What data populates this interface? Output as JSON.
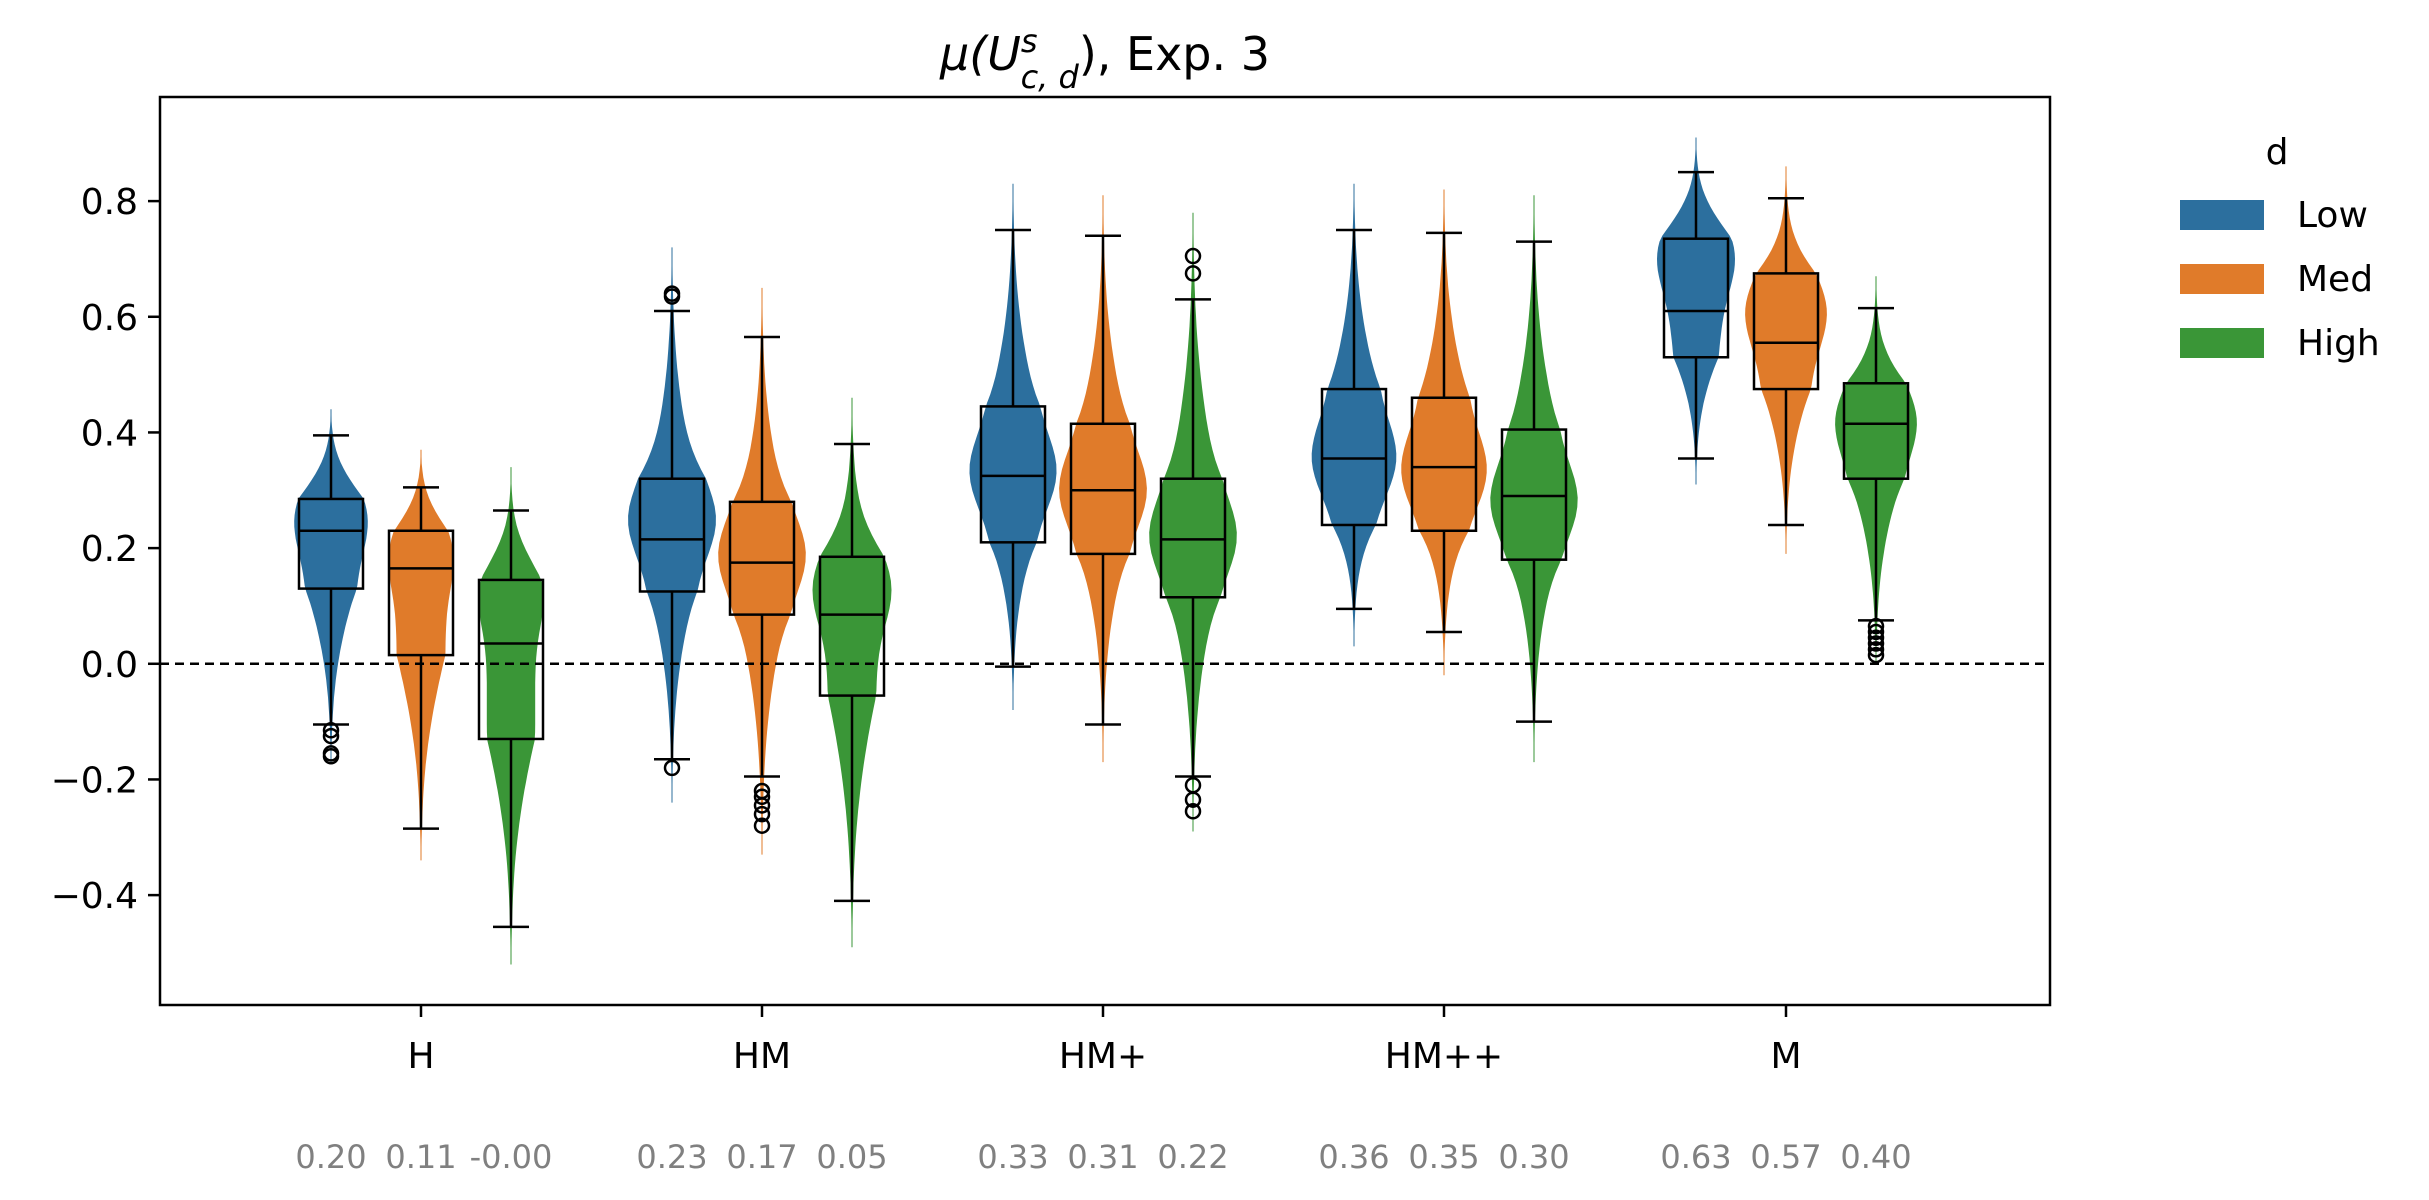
{
  "chart_data": {
    "type": "violin_box",
    "title_symbol": "μ(U",
    "title_sup": "s",
    "title_sub": "c, d",
    "title_suffix": "), Exp. 3",
    "xlabel": "",
    "ylabel": "",
    "ylim": [
      -0.59,
      0.98
    ],
    "yticks": [
      -0.4,
      -0.2,
      0.0,
      0.2,
      0.4,
      0.6,
      0.8
    ],
    "ytick_labels": [
      "−0.4",
      "−0.2",
      "0.0",
      "0.2",
      "0.4",
      "0.6",
      "0.8"
    ],
    "reference_line": 0.0,
    "categories": [
      "H",
      "HM",
      "HM+",
      "HM++",
      "M"
    ],
    "legend": {
      "title": "d",
      "placement": "outside-top-right",
      "entries": [
        {
          "label": "Low",
          "color": "#2c6f9e"
        },
        {
          "label": "Med",
          "color": "#e07b2a"
        },
        {
          "label": "High",
          "color": "#3a9637"
        }
      ]
    },
    "series": [
      {
        "name": "Low",
        "color": "#2c6f9e",
        "stats": [
          {
            "q1": 0.13,
            "median": 0.23,
            "q3": 0.285,
            "wlo": -0.105,
            "whi": 0.395,
            "outliers": [
              -0.115,
              -0.125,
              -0.155,
              -0.16
            ],
            "vmin": -0.17,
            "vmax": 0.44,
            "mode": 0.27,
            "mean_label": "0.20"
          },
          {
            "q1": 0.125,
            "median": 0.215,
            "q3": 0.32,
            "wlo": -0.165,
            "whi": 0.61,
            "outliers": [
              -0.18,
              0.635,
              0.64
            ],
            "vmin": -0.24,
            "vmax": 0.72,
            "mode": 0.25,
            "mean_label": "0.23"
          },
          {
            "q1": 0.21,
            "median": 0.325,
            "q3": 0.445,
            "wlo": -0.005,
            "whi": 0.75,
            "outliers": [],
            "vmin": -0.08,
            "vmax": 0.83,
            "mode": 0.33,
            "mean_label": "0.33"
          },
          {
            "q1": 0.24,
            "median": 0.355,
            "q3": 0.475,
            "wlo": 0.095,
            "whi": 0.75,
            "outliers": [],
            "vmin": 0.03,
            "vmax": 0.83,
            "mode": 0.35,
            "mean_label": "0.36"
          },
          {
            "q1": 0.53,
            "median": 0.61,
            "q3": 0.735,
            "wlo": 0.355,
            "whi": 0.85,
            "outliers": [],
            "vmin": 0.31,
            "vmax": 0.91,
            "mode": 0.72,
            "mean_label": "0.63"
          }
        ]
      },
      {
        "name": "Med",
        "color": "#e07b2a",
        "stats": [
          {
            "q1": 0.015,
            "median": 0.165,
            "q3": 0.23,
            "wlo": -0.285,
            "whi": 0.305,
            "outliers": [],
            "vmin": -0.34,
            "vmax": 0.37,
            "mode": 0.21,
            "mean_label": "0.11"
          },
          {
            "q1": 0.085,
            "median": 0.175,
            "q3": 0.28,
            "wlo": -0.195,
            "whi": 0.565,
            "outliers": [
              -0.22,
              -0.23,
              -0.245,
              -0.26,
              -0.28
            ],
            "vmin": -0.33,
            "vmax": 0.65,
            "mode": 0.19,
            "mean_label": "0.17"
          },
          {
            "q1": 0.19,
            "median": 0.3,
            "q3": 0.415,
            "wlo": -0.105,
            "whi": 0.74,
            "outliers": [],
            "vmin": -0.17,
            "vmax": 0.81,
            "mode": 0.3,
            "mean_label": "0.31"
          },
          {
            "q1": 0.23,
            "median": 0.34,
            "q3": 0.46,
            "wlo": 0.055,
            "whi": 0.745,
            "outliers": [],
            "vmin": -0.02,
            "vmax": 0.82,
            "mode": 0.33,
            "mean_label": "0.35"
          },
          {
            "q1": 0.475,
            "median": 0.555,
            "q3": 0.675,
            "wlo": 0.24,
            "whi": 0.805,
            "outliers": [],
            "vmin": 0.19,
            "vmax": 0.86,
            "mode": 0.62,
            "mean_label": "0.57"
          }
        ]
      },
      {
        "name": "High",
        "color": "#3a9637",
        "stats": [
          {
            "q1": -0.13,
            "median": 0.035,
            "q3": 0.145,
            "wlo": -0.455,
            "whi": 0.265,
            "outliers": [],
            "vmin": -0.52,
            "vmax": 0.34,
            "mode": 0.14,
            "mean_label": "-0.00"
          },
          {
            "q1": -0.055,
            "median": 0.085,
            "q3": 0.185,
            "wlo": -0.41,
            "whi": 0.38,
            "outliers": [],
            "vmin": -0.49,
            "vmax": 0.46,
            "mode": 0.14,
            "mean_label": "0.05"
          },
          {
            "q1": 0.115,
            "median": 0.215,
            "q3": 0.32,
            "wlo": -0.195,
            "whi": 0.63,
            "outliers": [
              -0.21,
              -0.235,
              -0.255,
              0.675,
              0.705
            ],
            "vmin": -0.29,
            "vmax": 0.78,
            "mode": 0.22,
            "mean_label": "0.22"
          },
          {
            "q1": 0.18,
            "median": 0.29,
            "q3": 0.405,
            "wlo": -0.1,
            "whi": 0.73,
            "outliers": [],
            "vmin": -0.17,
            "vmax": 0.81,
            "mode": 0.28,
            "mean_label": "0.30"
          },
          {
            "q1": 0.32,
            "median": 0.415,
            "q3": 0.485,
            "wlo": 0.075,
            "whi": 0.615,
            "outliers": [
              0.065,
              0.055,
              0.045,
              0.035,
              0.025,
              0.015
            ],
            "vmin": 0.0,
            "vmax": 0.67,
            "mode": 0.43,
            "mean_label": "0.40"
          }
        ]
      }
    ]
  }
}
